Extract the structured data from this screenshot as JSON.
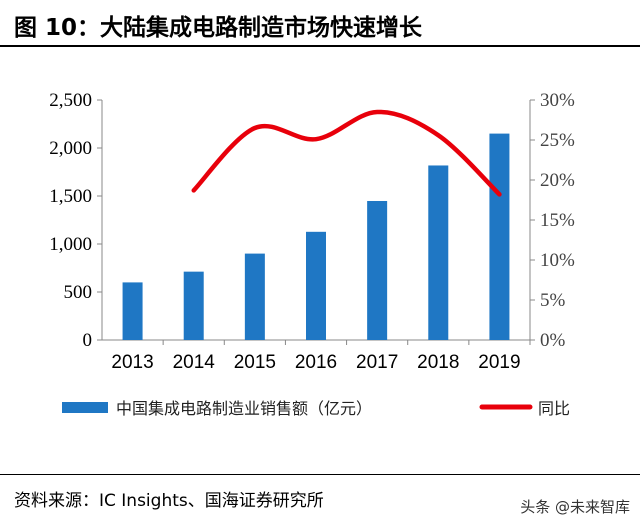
{
  "title": "图 10：大陆集成电路制造市场快速增长",
  "source": "资料来源：IC Insights、国海证券研究所",
  "watermark": "头条 @未来智库",
  "colors": {
    "bar": "#1f77c4",
    "line": "#e8000b"
  },
  "chart_data": {
    "type": "bar",
    "categories": [
      "2013",
      "2014",
      "2015",
      "2016",
      "2017",
      "2018",
      "2019"
    ],
    "series": [
      {
        "name": "中国集成电路制造业销售额（亿元）",
        "type": "bar",
        "axis": "left",
        "values": [
          600,
          712,
          900,
          1127,
          1448,
          1818,
          2150
        ]
      },
      {
        "name": "同比",
        "type": "line",
        "axis": "right",
        "values": [
          null,
          18.7,
          26.5,
          25.1,
          28.5,
          25.6,
          18.2
        ]
      }
    ],
    "y_left": {
      "min": 0,
      "max": 2500,
      "ticks": [
        "0",
        "500",
        "1,000",
        "1,500",
        "2,000",
        "2,500"
      ]
    },
    "y_right": {
      "min": 0,
      "max": 30,
      "ticks": [
        "0%",
        "5%",
        "10%",
        "15%",
        "20%",
        "25%",
        "30%"
      ]
    },
    "grid": false,
    "legend": "bottom"
  }
}
